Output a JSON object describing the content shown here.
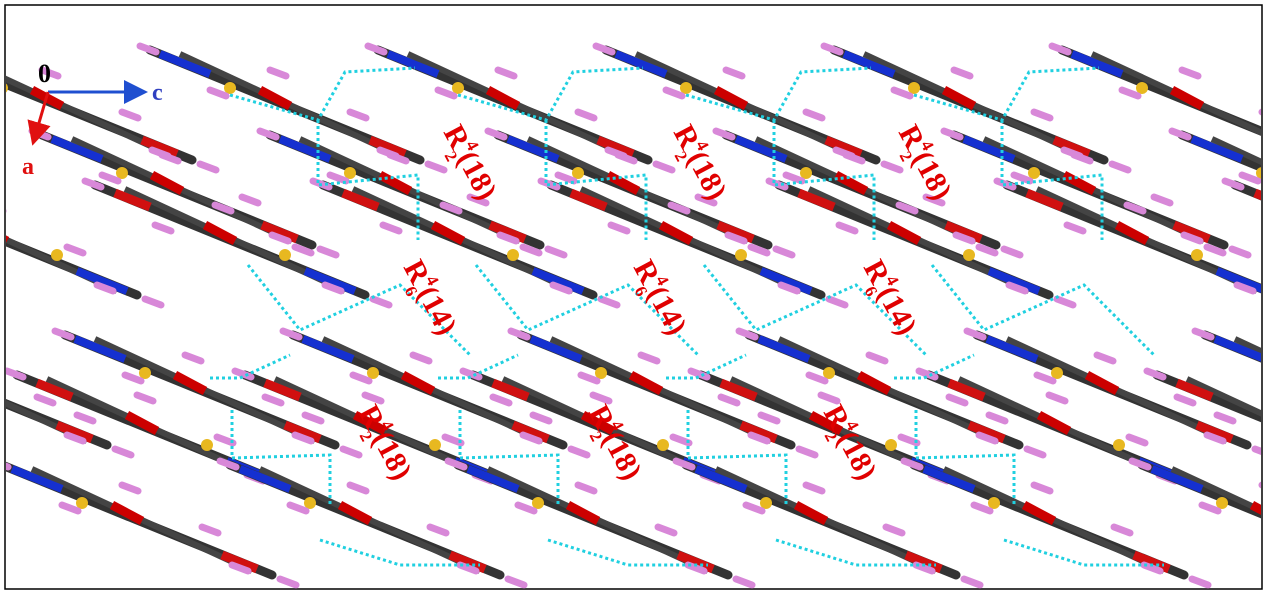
{
  "axes": {
    "origin": "0",
    "c_axis": "c",
    "a_axis": "a"
  },
  "motifs": [
    {
      "letter": "R",
      "superscript": "4",
      "subscript": "2",
      "ring_size": "(18)"
    },
    {
      "letter": "R",
      "superscript": "4",
      "subscript": "2",
      "ring_size": "(18)"
    },
    {
      "letter": "R",
      "superscript": "4",
      "subscript": "2",
      "ring_size": "(18)"
    },
    {
      "letter": "R",
      "superscript": "4",
      "subscript": "6",
      "ring_size": "(14)"
    },
    {
      "letter": "R",
      "superscript": "4",
      "subscript": "6",
      "ring_size": "(14)"
    },
    {
      "letter": "R",
      "superscript": "4",
      "subscript": "6",
      "ring_size": "(14)"
    },
    {
      "letter": "R",
      "superscript": "4",
      "subscript": "2",
      "ring_size": "(18)"
    },
    {
      "letter": "R",
      "superscript": "4",
      "subscript": "2",
      "ring_size": "(18)"
    },
    {
      "letter": "R",
      "superscript": "4",
      "subscript": "2",
      "ring_size": "(18)"
    }
  ]
}
